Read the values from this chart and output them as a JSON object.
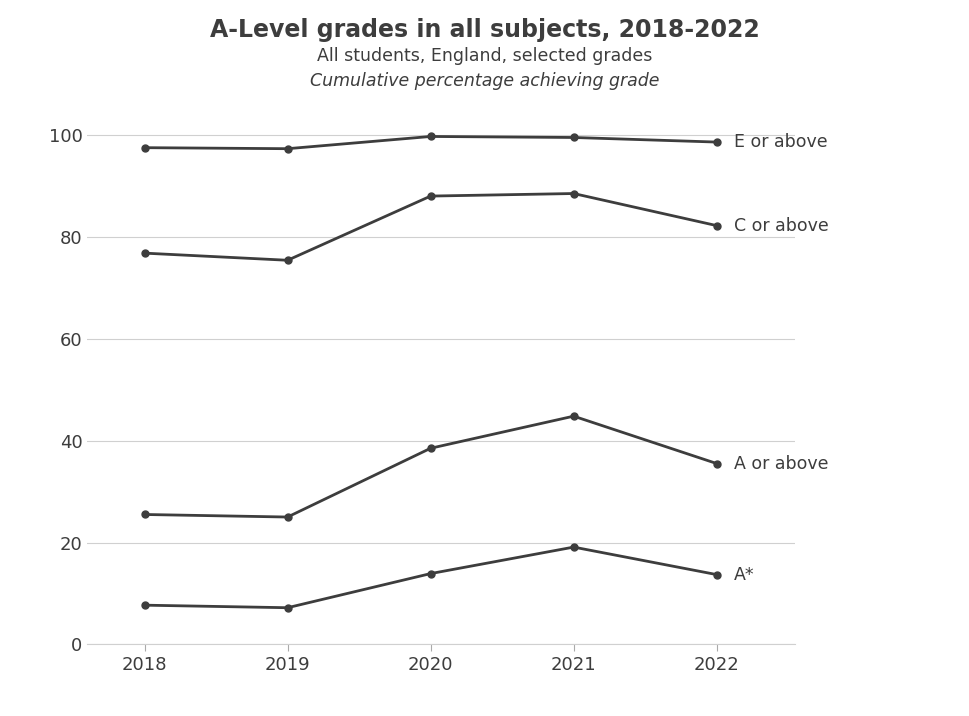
{
  "title": "A-Level grades in all subjects, 2018-2022",
  "subtitle1": "All students, England, selected grades",
  "subtitle2": "Cumulative percentage achieving grade",
  "years": [
    2018,
    2019,
    2020,
    2021,
    2022
  ],
  "series": {
    "E or above": [
      97.5,
      97.3,
      99.7,
      99.5,
      98.6
    ],
    "C or above": [
      76.8,
      75.4,
      88.0,
      88.5,
      82.2
    ],
    "A or above": [
      25.5,
      25.0,
      38.5,
      44.8,
      35.5
    ],
    "A*": [
      7.7,
      7.2,
      13.9,
      19.1,
      13.7
    ]
  },
  "line_color": "#3d3d3d",
  "marker": "o",
  "marker_size": 5,
  "line_width": 2,
  "ylim": [
    0,
    104
  ],
  "yticks": [
    0,
    20,
    40,
    60,
    80,
    100
  ],
  "background_color": "#ffffff",
  "grid_color": "#d0d0d0",
  "title_fontsize": 17,
  "subtitle_fontsize": 12.5,
  "label_fontsize": 12.5,
  "tick_fontsize": 13,
  "text_color": "#3d3d3d"
}
